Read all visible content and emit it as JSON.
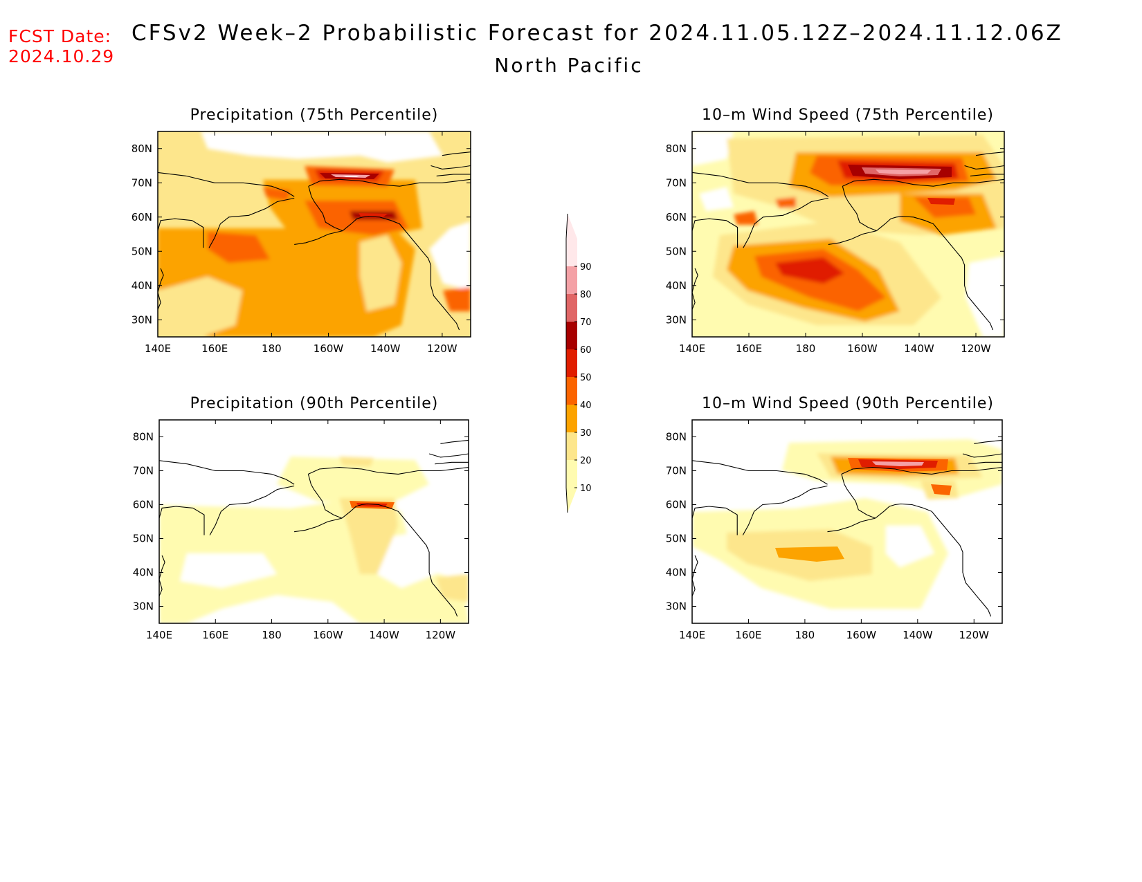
{
  "header": {
    "fcst_label": "FCST Date:",
    "fcst_date": "2024.10.29",
    "title": "CFSv2 Week–2 Probabilistic Forecast for 2024.11.05.12Z–2024.11.12.06Z",
    "region": "North Pacific"
  },
  "panels": [
    {
      "title": "Precipitation (75th Percentile)"
    },
    {
      "title": "10–m Wind Speed (75th Percentile)"
    },
    {
      "title": "Precipitation (90th Percentile)"
    },
    {
      "title": "10–m Wind Speed (90th Percentile)"
    }
  ],
  "axes": {
    "lon_labels": [
      "140E",
      "160E",
      "180",
      "160W",
      "140W",
      "120W"
    ],
    "lat_labels": [
      "80N",
      "70N",
      "60N",
      "50N",
      "40N",
      "30N"
    ]
  },
  "colorbar": {
    "levels": [
      "10",
      "20",
      "30",
      "40",
      "50",
      "60",
      "70",
      "80",
      "90"
    ],
    "colors": [
      "#fffbb0",
      "#fde68c",
      "#fca300",
      "#fb6400",
      "#e01d00",
      "#a70000",
      "#e06666",
      "#f4a1a6",
      "#ffe8ea"
    ]
  }
}
